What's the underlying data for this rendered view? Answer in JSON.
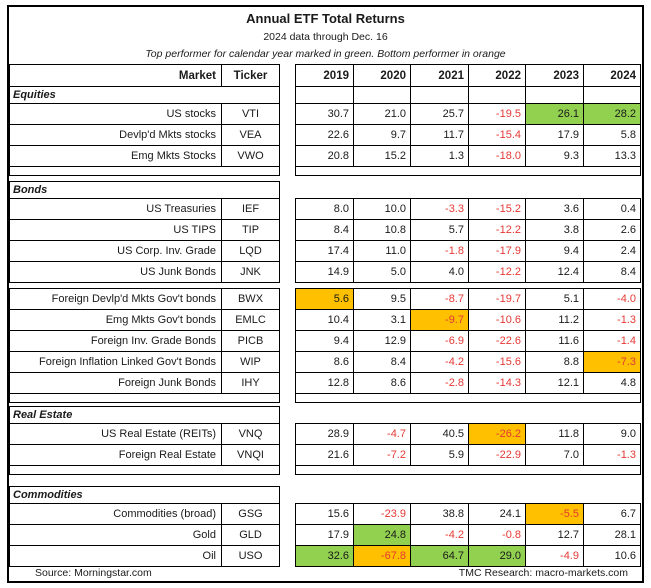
{
  "title": "Annual ETF Total Returns",
  "subtitle": "2024 data through Dec. 16",
  "note": "Top performer for calendar year marked in green. Bottom performer in orange",
  "colors": {
    "top_performer_green": "#92d050",
    "bottom_performer_orange": "#ffc000",
    "negative_red": "#e53935"
  },
  "footer": {
    "left": "Source: Morningstar.com",
    "right": "TMC Research: macro-markets.com"
  },
  "chart_data": {
    "type": "table",
    "columns": [
      "Market",
      "Ticker",
      "2019",
      "2020",
      "2021",
      "2022",
      "2023",
      "2024"
    ],
    "highlight_legend": {
      "green": "Top performer for calendar year",
      "orange": "Bottom performer for calendar year"
    },
    "sections": [
      {
        "label": "Equities",
        "groups": [
          [
            {
              "market": "US stocks",
              "ticker": "VTI",
              "values": [
                30.7,
                21.0,
                25.7,
                -19.5,
                26.1,
                28.2
              ],
              "hl": [
                null,
                null,
                null,
                null,
                "top",
                "top"
              ]
            },
            {
              "market": "Devlp'd Mkts stocks",
              "ticker": "VEA",
              "values": [
                22.6,
                9.7,
                11.7,
                -15.4,
                17.9,
                5.8
              ]
            },
            {
              "market": "Emg Mkts Stocks",
              "ticker": "VWO",
              "values": [
                20.8,
                15.2,
                1.3,
                -18.0,
                9.3,
                13.3
              ]
            }
          ]
        ]
      },
      {
        "label": "Bonds",
        "groups": [
          [
            {
              "market": "US Treasuries",
              "ticker": "IEF",
              "values": [
                8.0,
                10.0,
                -3.3,
                -15.2,
                3.6,
                0.4
              ]
            },
            {
              "market": "US TIPS",
              "ticker": "TIP",
              "values": [
                8.4,
                10.8,
                5.7,
                -12.2,
                3.8,
                2.6
              ]
            },
            {
              "market": "US Corp. Inv. Grade",
              "ticker": "LQD",
              "values": [
                17.4,
                11.0,
                -1.8,
                -17.9,
                9.4,
                2.4
              ]
            },
            {
              "market": "US Junk Bonds",
              "ticker": "JNK",
              "values": [
                14.9,
                5.0,
                4.0,
                -12.2,
                12.4,
                8.4
              ]
            }
          ],
          [
            {
              "market": "Foreign Devlp'd Mkts Gov't bonds",
              "ticker": "BWX",
              "values": [
                5.6,
                9.5,
                -8.7,
                -19.7,
                5.1,
                -4.0
              ],
              "hl": [
                "bottom",
                null,
                null,
                null,
                null,
                null
              ]
            },
            {
              "market": "Emg Mkts Gov't bonds",
              "ticker": "EMLC",
              "values": [
                10.4,
                3.1,
                -9.7,
                -10.6,
                11.2,
                -1.3
              ],
              "hl": [
                null,
                null,
                "bottom",
                null,
                null,
                null
              ]
            },
            {
              "market": "Foreign Inv. Grade Bonds",
              "ticker": "PICB",
              "values": [
                9.4,
                12.9,
                -6.9,
                -22.6,
                11.6,
                -1.4
              ]
            },
            {
              "market": "Foreign Inflation Linked Gov't Bonds",
              "ticker": "WIP",
              "values": [
                8.6,
                8.4,
                -4.2,
                -15.6,
                8.8,
                -7.3
              ],
              "hl": [
                null,
                null,
                null,
                null,
                null,
                "bottom"
              ]
            },
            {
              "market": "Foreign Junk Bonds",
              "ticker": "IHY",
              "values": [
                12.8,
                8.6,
                -2.8,
                -14.3,
                12.1,
                4.8
              ]
            }
          ]
        ]
      },
      {
        "label": "Real Estate",
        "groups": [
          [
            {
              "market": "US Real Estate (REITs)",
              "ticker": "VNQ",
              "values": [
                28.9,
                -4.7,
                40.5,
                -26.2,
                11.8,
                9.0
              ],
              "hl": [
                null,
                null,
                null,
                "bottom",
                null,
                null
              ]
            },
            {
              "market": "Foreign Real Estate",
              "ticker": "VNQI",
              "values": [
                21.6,
                -7.2,
                5.9,
                -22.9,
                7.0,
                -1.3
              ]
            }
          ]
        ]
      },
      {
        "label": "Commodities",
        "groups": [
          [
            {
              "market": "Commodities (broad)",
              "ticker": "GSG",
              "values": [
                15.6,
                -23.9,
                38.8,
                24.1,
                -5.5,
                6.7
              ],
              "hl": [
                null,
                null,
                null,
                null,
                "bottom",
                null
              ]
            },
            {
              "market": "Gold",
              "ticker": "GLD",
              "values": [
                17.9,
                24.8,
                -4.2,
                -0.8,
                12.7,
                28.1
              ],
              "hl": [
                null,
                "top",
                null,
                null,
                null,
                null
              ]
            },
            {
              "market": "Oil",
              "ticker": "USO",
              "values": [
                32.6,
                -67.8,
                64.7,
                29.0,
                -4.9,
                10.6
              ],
              "hl": [
                "top",
                "bottom",
                "top",
                "top",
                null,
                null
              ]
            }
          ]
        ]
      }
    ]
  }
}
